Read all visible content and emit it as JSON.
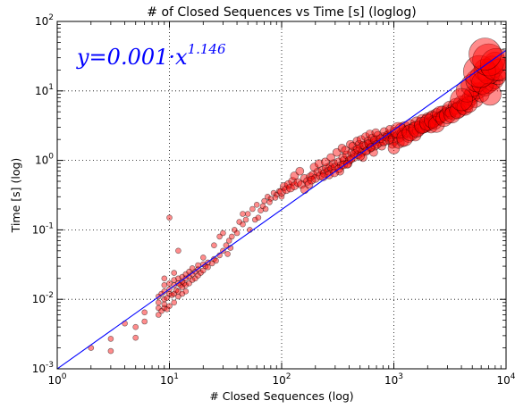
{
  "chart_data": {
    "type": "scatter",
    "title": "# of Closed Sequences vs Time [s] (loglog)",
    "xlabel": "# Closed Sequences (log)",
    "ylabel": "Time [s] (log)",
    "xscale": "log",
    "yscale": "log",
    "xlim": [
      1,
      10000
    ],
    "ylim": [
      0.001,
      100
    ],
    "grid": true,
    "x_ticks": [
      {
        "base": "10",
        "exp": "0"
      },
      {
        "base": "10",
        "exp": "1"
      },
      {
        "base": "10",
        "exp": "2"
      },
      {
        "base": "10",
        "exp": "3"
      },
      {
        "base": "10",
        "exp": "4"
      }
    ],
    "y_ticks": [
      {
        "base": "10",
        "exp": "-3"
      },
      {
        "base": "10",
        "exp": "-2"
      },
      {
        "base": "10",
        "exp": "-1"
      },
      {
        "base": "10",
        "exp": "0"
      },
      {
        "base": "10",
        "exp": "1"
      },
      {
        "base": "10",
        "exp": "2"
      }
    ],
    "fit": {
      "coefficient": 0.001,
      "exponent": 1.146,
      "label_prefix": "y=",
      "label_coef": "0.001",
      "label_mid": "·x",
      "label_exp": "1.146",
      "color": "#0000ff"
    },
    "marker_color": "#ff0000",
    "marker_edge": "#000000",
    "series": [
      {
        "points": [
          [
            2,
            0.002
          ],
          [
            3,
            0.0018
          ],
          [
            3,
            0.0027
          ],
          [
            4,
            0.0045
          ],
          [
            5,
            0.0028
          ],
          [
            5,
            0.004
          ],
          [
            6,
            0.0048
          ],
          [
            6,
            0.0065
          ],
          [
            8,
            0.006
          ],
          [
            8,
            0.0075
          ],
          [
            8,
            0.009
          ],
          [
            8,
            0.011
          ],
          [
            8.5,
            0.0068
          ],
          [
            8.5,
            0.012
          ],
          [
            9,
            0.0075
          ],
          [
            9,
            0.0085
          ],
          [
            9,
            0.01
          ],
          [
            9,
            0.013
          ],
          [
            9,
            0.016
          ],
          [
            9.5,
            0.0072
          ],
          [
            9.5,
            0.0105
          ],
          [
            10,
            0.008
          ],
          [
            10,
            0.012
          ],
          [
            10,
            0.014
          ],
          [
            10,
            0.017
          ],
          [
            10.5,
            0.0115
          ],
          [
            11,
            0.009
          ],
          [
            11,
            0.012
          ],
          [
            11,
            0.016
          ],
          [
            11,
            0.019
          ],
          [
            11.5,
            0.0135
          ],
          [
            12,
            0.011
          ],
          [
            12,
            0.013
          ],
          [
            12,
            0.017
          ],
          [
            12,
            0.02
          ],
          [
            12.5,
            0.016
          ],
          [
            13,
            0.012
          ],
          [
            13,
            0.015
          ],
          [
            13,
            0.018
          ],
          [
            13,
            0.021
          ],
          [
            13.5,
            0.017
          ],
          [
            14,
            0.016
          ],
          [
            14,
            0.02
          ],
          [
            14,
            0.023
          ],
          [
            15,
            0.017
          ],
          [
            15,
            0.021
          ],
          [
            15,
            0.025
          ],
          [
            16,
            0.019
          ],
          [
            16,
            0.023
          ],
          [
            17,
            0.02
          ],
          [
            17,
            0.025
          ],
          [
            18,
            0.022
          ],
          [
            18,
            0.027
          ],
          [
            19,
            0.024
          ],
          [
            20,
            0.026
          ],
          [
            20,
            0.032
          ],
          [
            21,
            0.03
          ],
          [
            22,
            0.029
          ],
          [
            22,
            0.034
          ],
          [
            24,
            0.033
          ],
          [
            25,
            0.038
          ],
          [
            26,
            0.036
          ],
          [
            28,
            0.043
          ],
          [
            30,
            0.05
          ],
          [
            30,
            0.09
          ],
          [
            32,
            0.06
          ],
          [
            34,
            0.07
          ],
          [
            35,
            0.055
          ],
          [
            36,
            0.08
          ],
          [
            38,
            0.1
          ],
          [
            40,
            0.09
          ],
          [
            42,
            0.13
          ],
          [
            45,
            0.12
          ],
          [
            48,
            0.14
          ],
          [
            50,
            0.17
          ],
          [
            55,
            0.2
          ],
          [
            60,
            0.23
          ],
          [
            65,
            0.19
          ],
          [
            70,
            0.26
          ],
          [
            75,
            0.3
          ],
          [
            80,
            0.28
          ],
          [
            85,
            0.34
          ],
          [
            90,
            0.32
          ],
          [
            95,
            0.36
          ],
          [
            100,
            0.3
          ],
          [
            25,
            0.06
          ],
          [
            28,
            0.08
          ],
          [
            45,
            0.17
          ],
          [
            10,
            0.15
          ],
          [
            12,
            0.05
          ],
          [
            9,
            0.02
          ],
          [
            11,
            0.024
          ],
          [
            14,
            0.013
          ],
          [
            16,
            0.028
          ],
          [
            18,
            0.031
          ],
          [
            20,
            0.04
          ],
          [
            33,
            0.045
          ],
          [
            52,
            0.1
          ],
          [
            58,
            0.14
          ],
          [
            62,
            0.15
          ],
          [
            68,
            0.22
          ],
          [
            72,
            0.2
          ],
          [
            78,
            0.25
          ],
          [
            88,
            0.29
          ]
        ],
        "size": 3
      },
      {
        "points": [
          [
            100,
            0.35
          ],
          [
            105,
            0.42
          ],
          [
            110,
            0.38
          ],
          [
            115,
            0.45
          ],
          [
            120,
            0.4
          ],
          [
            125,
            0.5
          ],
          [
            130,
            0.43
          ],
          [
            140,
            0.48
          ],
          [
            150,
            0.45
          ],
          [
            160,
            0.55
          ],
          [
            170,
            0.5
          ],
          [
            180,
            0.58
          ],
          [
            190,
            0.62
          ],
          [
            200,
            0.55
          ],
          [
            210,
            0.68
          ],
          [
            220,
            0.6
          ],
          [
            230,
            0.72
          ],
          [
            240,
            0.65
          ],
          [
            250,
            0.78
          ],
          [
            260,
            0.7
          ],
          [
            270,
            0.82
          ],
          [
            280,
            0.75
          ],
          [
            290,
            0.9
          ],
          [
            300,
            0.8
          ],
          [
            320,
            0.95
          ],
          [
            340,
            0.85
          ],
          [
            350,
            1.1
          ],
          [
            360,
            1.0
          ],
          [
            380,
            1.2
          ],
          [
            400,
            1.0
          ],
          [
            420,
            1.3
          ],
          [
            440,
            1.1
          ],
          [
            460,
            1.4
          ],
          [
            480,
            1.2
          ],
          [
            500,
            1.5
          ],
          [
            520,
            1.3
          ],
          [
            550,
            1.6
          ],
          [
            580,
            1.4
          ],
          [
            600,
            1.7
          ],
          [
            620,
            1.5
          ],
          [
            650,
            1.8
          ],
          [
            680,
            1.6
          ],
          [
            700,
            2.0
          ],
          [
            750,
            1.8
          ],
          [
            800,
            2.2
          ],
          [
            850,
            1.9
          ],
          [
            900,
            2.4
          ],
          [
            950,
            2.1
          ],
          [
            130,
            0.6
          ],
          [
            145,
            0.7
          ],
          [
            175,
            0.45
          ],
          [
            195,
            0.8
          ],
          [
            215,
            0.9
          ],
          [
            245,
            0.95
          ],
          [
            275,
            1.1
          ],
          [
            310,
            1.3
          ],
          [
            330,
            0.7
          ],
          [
            345,
            1.5
          ],
          [
            370,
            1.4
          ],
          [
            390,
            0.9
          ],
          [
            410,
            1.7
          ],
          [
            430,
            1.6
          ],
          [
            470,
            1.9
          ],
          [
            490,
            1.7
          ],
          [
            510,
            2.0
          ],
          [
            530,
            1.1
          ],
          [
            560,
            2.2
          ],
          [
            590,
            1.9
          ],
          [
            610,
            2.4
          ],
          [
            640,
            2.1
          ],
          [
            660,
            1.3
          ],
          [
            690,
            2.5
          ],
          [
            720,
            2.3
          ],
          [
            780,
            1.6
          ],
          [
            820,
            2.6
          ],
          [
            870,
            2.3
          ],
          [
            920,
            2.8
          ],
          [
            970,
            1.7
          ],
          [
            160,
            0.38
          ],
          [
            185,
            0.52
          ],
          [
            235,
            0.58
          ],
          [
            265,
            0.62
          ],
          [
            295,
            0.66
          ],
          [
            325,
            0.76
          ],
          [
            355,
            0.86
          ],
          [
            385,
            0.88
          ],
          [
            415,
            1.05
          ],
          [
            445,
            1.25
          ],
          [
            475,
            1.45
          ],
          [
            505,
            1.15
          ],
          [
            535,
            1.65
          ],
          [
            565,
            1.35
          ],
          [
            595,
            1.75
          ],
          [
            630,
            1.55
          ],
          [
            670,
            1.95
          ],
          [
            710,
            1.7
          ],
          [
            760,
            2.05
          ],
          [
            810,
            1.85
          ],
          [
            860,
            2.15
          ],
          [
            910,
            1.95
          ],
          [
            960,
            2.3
          ]
        ],
        "size": 4.5
      },
      {
        "points": [
          [
            1000,
            2.0
          ],
          [
            1050,
            2.5
          ],
          [
            1100,
            2.2
          ],
          [
            1150,
            2.8
          ],
          [
            1200,
            2.4
          ],
          [
            1250,
            3.0
          ],
          [
            1300,
            2.6
          ],
          [
            1400,
            3.2
          ],
          [
            1500,
            2.9
          ],
          [
            1600,
            3.5
          ],
          [
            1700,
            3.1
          ],
          [
            1800,
            3.8
          ],
          [
            1900,
            3.3
          ],
          [
            2000,
            4.0
          ],
          [
            2100,
            3.5
          ],
          [
            2200,
            4.3
          ],
          [
            2300,
            3.7
          ],
          [
            2400,
            4.6
          ],
          [
            2500,
            3.9
          ],
          [
            2600,
            4.2
          ],
          [
            2700,
            5.0
          ],
          [
            2800,
            4.5
          ],
          [
            3000,
            5.2
          ],
          [
            3200,
            4.8
          ],
          [
            1000,
            1.5
          ],
          [
            1100,
            1.8
          ],
          [
            1200,
            1.9
          ],
          [
            1350,
            2.2
          ],
          [
            1450,
            2.5
          ],
          [
            1550,
            2.3
          ],
          [
            1650,
            2.7
          ],
          [
            1750,
            2.9
          ],
          [
            1850,
            3.0
          ],
          [
            1950,
            3.1
          ],
          [
            2050,
            3.3
          ],
          [
            2150,
            3.0
          ],
          [
            2250,
            3.6
          ],
          [
            2350,
            3.4
          ],
          [
            2450,
            3.9
          ],
          [
            2550,
            4.1
          ]
        ],
        "size": 6.5
      },
      {
        "points": [
          [
            1100,
            2.7
          ],
          [
            1250,
            2.1
          ],
          [
            1400,
            2.5
          ],
          [
            1600,
            2.8
          ],
          [
            1800,
            3.2
          ],
          [
            2000,
            3.5
          ],
          [
            2200,
            3.8
          ],
          [
            2400,
            3.3
          ],
          [
            2600,
            4.6
          ],
          [
            2800,
            4.0
          ],
          [
            3000,
            4.4
          ],
          [
            3200,
            5.5
          ],
          [
            3400,
            5.0
          ],
          [
            3600,
            6.0
          ],
          [
            3800,
            5.4
          ],
          [
            4000,
            6.5
          ],
          [
            4200,
            6.0
          ],
          [
            4500,
            7.0
          ],
          [
            4800,
            8.0
          ],
          [
            5000,
            9.0
          ],
          [
            5300,
            7.5
          ],
          [
            5600,
            10.0
          ],
          [
            6000,
            9.0
          ],
          [
            6500,
            11.0
          ],
          [
            7000,
            12.0
          ],
          [
            7500,
            13.0
          ],
          [
            8000,
            14.0
          ],
          [
            8500,
            16.0
          ],
          [
            3300,
            4.5
          ],
          [
            3700,
            5.2
          ],
          [
            4300,
            5.8
          ],
          [
            4700,
            6.4
          ]
        ],
        "size": 9
      },
      {
        "points": [
          [
            4500,
            10.0
          ],
          [
            5000,
            12.0
          ],
          [
            5500,
            14.0
          ],
          [
            6000,
            16.0
          ],
          [
            6500,
            20.0
          ],
          [
            7000,
            18.0
          ],
          [
            7500,
            22.0
          ],
          [
            8000,
            25.0
          ],
          [
            6200,
            13.0
          ],
          [
            7200,
            9.0
          ],
          [
            4000,
            7.5
          ],
          [
            8800,
            20.0
          ]
        ],
        "size": 12.5
      },
      {
        "points": [
          [
            5800,
            19.0
          ],
          [
            7000,
            28.0
          ],
          [
            8200,
            24.0
          ],
          [
            6500,
            34.0
          ]
        ],
        "size": 18
      }
    ]
  }
}
